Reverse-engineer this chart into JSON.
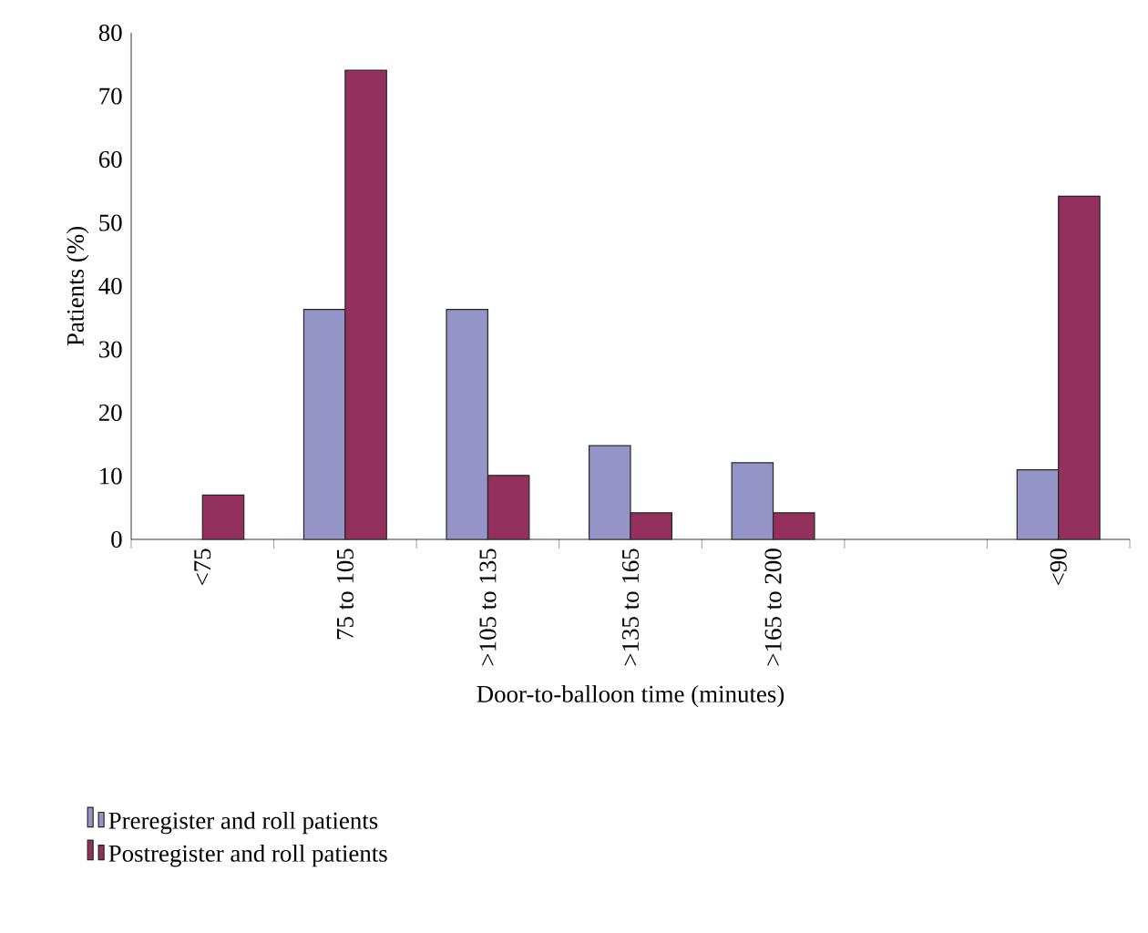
{
  "chart_data": {
    "type": "bar",
    "xlabel": "Door-to-balloon time (minutes)",
    "ylabel": "Patients (%)",
    "categories": [
      "<75",
      "75 to 105",
      ">105 to 135",
      ">135 to 165",
      ">165 to 200",
      null,
      "<90"
    ],
    "series": [
      {
        "name": "Preregister and roll patients",
        "color": "#9494c6",
        "values": [
          null,
          36.3,
          36.3,
          14.8,
          12.1,
          null,
          11.0
        ]
      },
      {
        "name": "Postregister and roll patients",
        "color": "#94305e",
        "values": [
          7,
          74.1,
          10.1,
          4.2,
          4.2,
          null,
          54.2
        ]
      }
    ],
    "ylim": [
      0,
      80
    ],
    "yticks": [
      0,
      10,
      20,
      30,
      40,
      50,
      60,
      70,
      80
    ],
    "grid": false,
    "legend": "bottom left"
  }
}
